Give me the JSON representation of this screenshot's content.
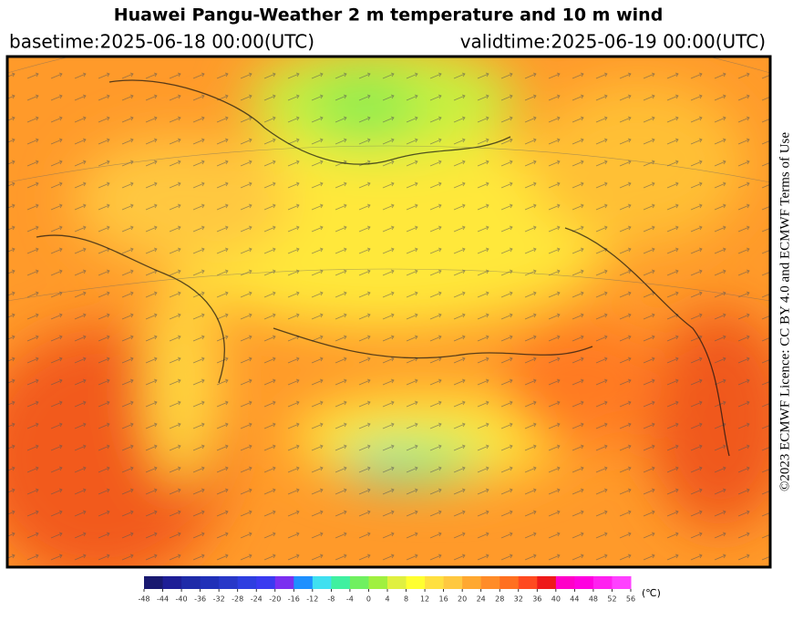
{
  "header": {
    "title": "Huawei Pangu-Weather  2 m temperature and 10 m wind",
    "basetime": "basetime:2025-06-18 00:00(UTC)",
    "validtime": "validtime:2025-06-19 00:00(UTC)"
  },
  "credit": "©2023 ECMWF Licence: CC BY 4.0 and ECMWF  Terms of Use",
  "colorbar": {
    "unit": "(℃)",
    "ticks": [
      -48,
      -44,
      -40,
      -36,
      -32,
      -28,
      -24,
      -20,
      -16,
      -12,
      -8,
      -4,
      0,
      4,
      8,
      12,
      16,
      20,
      24,
      28,
      32,
      36,
      40,
      44,
      48,
      52,
      56
    ],
    "colors": [
      "#191970",
      "#1e1e96",
      "#1f2ba8",
      "#2030b8",
      "#2838c8",
      "#2e3ee0",
      "#3a3af0",
      "#7b2ff0",
      "#1e90ff",
      "#40e0f0",
      "#40f0a0",
      "#70f060",
      "#a0f040",
      "#e0f040",
      "#ffff30",
      "#ffe040",
      "#ffc840",
      "#ffa830",
      "#ff8c28",
      "#ff7020",
      "#ff4a20",
      "#ee1a1a",
      "#ff00c8",
      "#ff00e0",
      "#ff20f0",
      "#ff40ff"
    ]
  }
}
